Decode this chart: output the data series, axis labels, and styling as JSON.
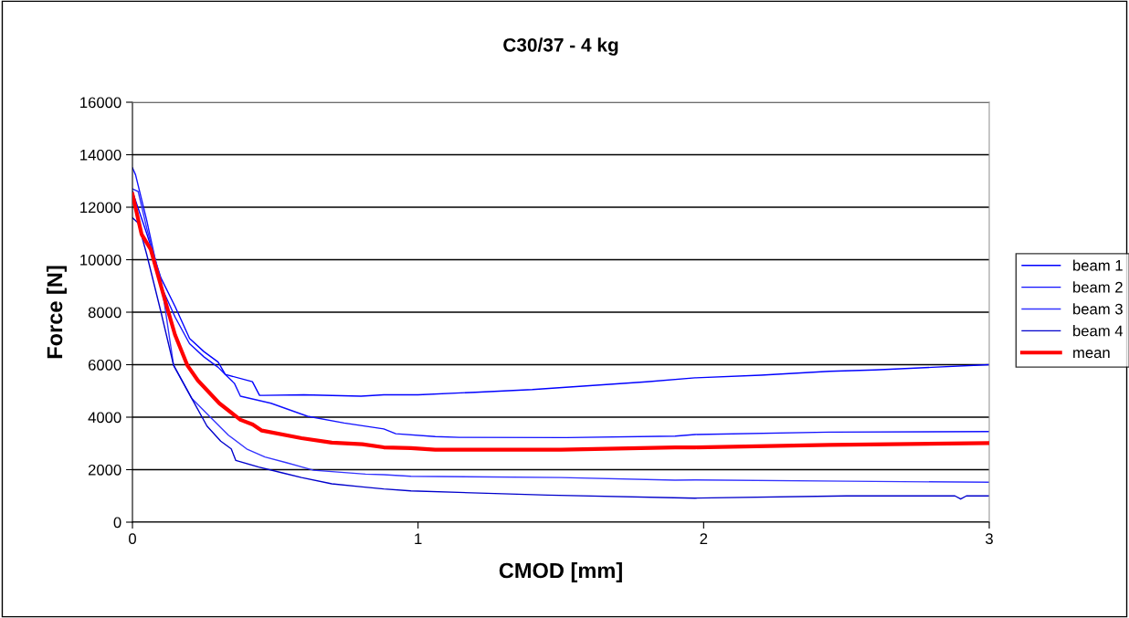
{
  "chart_data": {
    "type": "line",
    "title": "C30/37 - 4 kg",
    "xlabel": "CMOD [mm]",
    "ylabel": "Force [N]",
    "xlim": [
      0,
      3
    ],
    "xticks": [
      0,
      1,
      2,
      3
    ],
    "ylim": [
      0,
      16000
    ],
    "yticks": [
      0,
      2000,
      4000,
      6000,
      8000,
      10000,
      12000,
      14000,
      16000
    ],
    "grid": "y",
    "legend": "right",
    "marker": "none",
    "line_style": "solid",
    "series": [
      {
        "name": "beam 1",
        "color": "#0000ff",
        "x": [
          0,
          0.05,
          0.1,
          0.15,
          0.2,
          0.25,
          0.3,
          0.325,
          0.42,
          0.445,
          0.46,
          0.6,
          0.8,
          0.88,
          1.0,
          1.2,
          1.4,
          1.6,
          1.8,
          1.97,
          2.2,
          2.44,
          2.6,
          2.8,
          3.0
        ],
        "values": [
          12600,
          11000,
          9300,
          8200,
          7000,
          6500,
          6100,
          5630,
          5350,
          4830,
          4830,
          4850,
          4800,
          4850,
          4850,
          4950,
          5050,
          5200,
          5350,
          5500,
          5600,
          5750,
          5800,
          5900,
          6000
        ]
      },
      {
        "name": "beam 2",
        "color": "#1010ff",
        "x": [
          0,
          0.011,
          0.05,
          0.08,
          0.1,
          0.15,
          0.2,
          0.25,
          0.3,
          0.325,
          0.357,
          0.378,
          0.485,
          0.613,
          0.741,
          0.88,
          0.922,
          1.06,
          1.145,
          1.52,
          1.9,
          1.97,
          2.44,
          3.0
        ],
        "values": [
          13500,
          13230,
          11500,
          10000,
          9000,
          7800,
          6800,
          6300,
          5900,
          5630,
          5290,
          4800,
          4530,
          4035,
          3780,
          3550,
          3370,
          3260,
          3230,
          3220,
          3280,
          3340,
          3430,
          3450
        ]
      },
      {
        "name": "beam 3",
        "color": "#3333ff",
        "x": [
          0,
          0.02,
          0.05,
          0.1,
          0.144,
          0.208,
          0.272,
          0.336,
          0.4,
          0.464,
          0.538,
          0.634,
          0.698,
          0.816,
          0.88,
          0.975,
          1.5,
          1.9,
          1.97,
          2.5,
          3.0
        ],
        "values": [
          12700,
          12600,
          11200,
          9200,
          5980,
          4710,
          4010,
          3315,
          2790,
          2480,
          2270,
          1980,
          1925,
          1830,
          1810,
          1750,
          1700,
          1600,
          1610,
          1560,
          1520
        ]
      },
      {
        "name": "beam 4",
        "color": "#0000cc",
        "x": [
          0,
          0.02,
          0.05,
          0.1,
          0.144,
          0.208,
          0.261,
          0.309,
          0.346,
          0.362,
          0.442,
          0.528,
          0.592,
          0.698,
          0.805,
          0.88,
          0.975,
          1.455,
          1.97,
          2.5,
          2.88,
          2.9,
          2.92,
          3.0
        ],
        "values": [
          11600,
          11400,
          10200,
          8000,
          5980,
          4710,
          3660,
          3085,
          2790,
          2350,
          2100,
          1870,
          1700,
          1460,
          1345,
          1265,
          1190,
          1030,
          915,
          1000,
          1000,
          880,
          1000,
          1000
        ]
      },
      {
        "name": "mean",
        "color": "#ff0000",
        "x": [
          0,
          0.032,
          0.064,
          0.112,
          0.149,
          0.192,
          0.229,
          0.304,
          0.378,
          0.421,
          0.453,
          0.592,
          0.698,
          0.805,
          0.88,
          0.975,
          1.06,
          1.5,
          1.9,
          1.97,
          2.44,
          3.0
        ],
        "values": [
          12500,
          10970,
          10390,
          8530,
          7140,
          5980,
          5400,
          4530,
          3900,
          3720,
          3490,
          3200,
          3030,
          2970,
          2850,
          2820,
          2760,
          2760,
          2850,
          2850,
          2945,
          3015
        ]
      }
    ]
  }
}
